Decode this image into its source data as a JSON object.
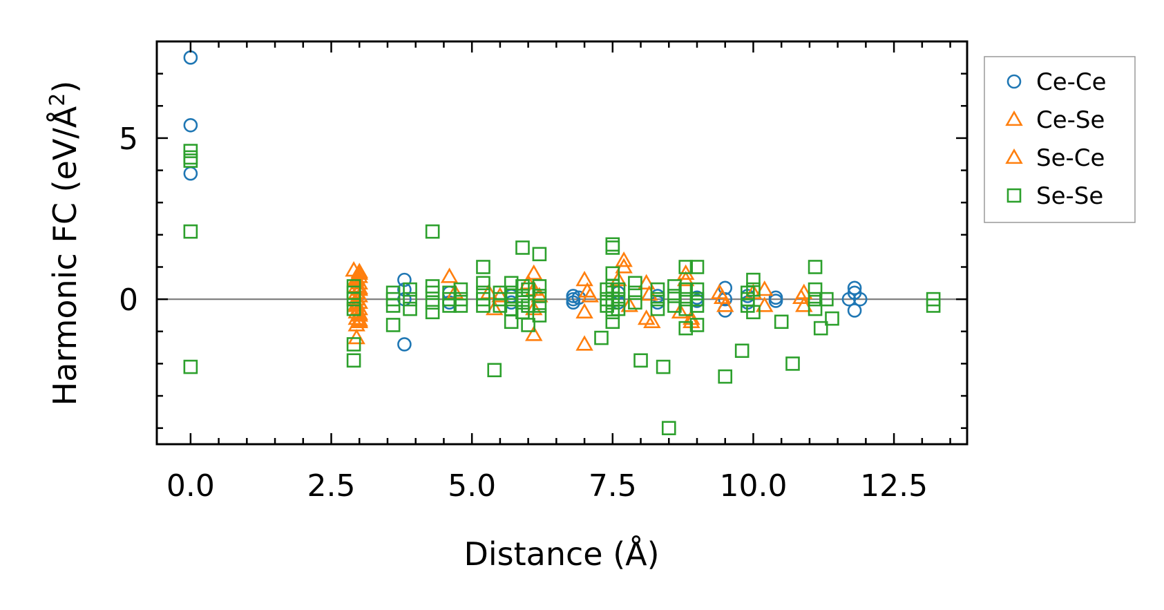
{
  "chart_data": {
    "type": "scatter",
    "title": "",
    "xlabel": "Distance (Å)",
    "ylabel": "Harmonic FC (eV/Å²)",
    "ylabel_base": "Harmonic FC (eV/Å",
    "ylabel_sup": "2",
    "ylabel_close": ")",
    "xlim": [
      -0.6,
      13.8
    ],
    "ylim": [
      -4.5,
      8.0
    ],
    "xticks": [
      0.0,
      2.5,
      5.0,
      7.5,
      10.0,
      12.5
    ],
    "xtick_labels": [
      "0.0",
      "2.5",
      "5.0",
      "7.5",
      "10.0",
      "12.5"
    ],
    "yticks": [
      0,
      5
    ],
    "ytick_labels": [
      "0",
      "5"
    ],
    "reference_line": 0,
    "legend_position": "outside-top-right",
    "series": [
      {
        "name": "Ce-Ce",
        "marker": "circle",
        "color": "#1f77b4",
        "points": [
          [
            0.0,
            7.5
          ],
          [
            0.0,
            5.4
          ],
          [
            0.0,
            3.9
          ],
          [
            3.8,
            0.6
          ],
          [
            3.8,
            0.3
          ],
          [
            3.8,
            0.0
          ],
          [
            3.8,
            -1.4
          ],
          [
            4.6,
            0.2
          ],
          [
            4.6,
            -0.1
          ],
          [
            5.7,
            0.1
          ],
          [
            5.7,
            -0.1
          ],
          [
            6.8,
            0.1
          ],
          [
            6.8,
            0.0
          ],
          [
            6.8,
            -0.1
          ],
          [
            6.9,
            0.05
          ],
          [
            7.6,
            0.2
          ],
          [
            7.6,
            -0.1
          ],
          [
            8.3,
            0.1
          ],
          [
            8.3,
            -0.1
          ],
          [
            9.0,
            0.05
          ],
          [
            9.0,
            -0.05
          ],
          [
            9.5,
            0.35
          ],
          [
            9.5,
            -0.35
          ],
          [
            9.5,
            0.0
          ],
          [
            9.9,
            0.1
          ],
          [
            9.9,
            -0.1
          ],
          [
            10.4,
            0.05
          ],
          [
            10.4,
            -0.05
          ],
          [
            11.8,
            0.35
          ],
          [
            11.8,
            0.2
          ],
          [
            11.8,
            -0.35
          ],
          [
            11.9,
            0.0
          ],
          [
            11.7,
            0.0
          ]
        ]
      },
      {
        "name": "Ce-Se",
        "marker": "triangle",
        "color": "#ff7f0e",
        "points": [
          [
            2.9,
            0.9
          ],
          [
            3.0,
            0.8
          ],
          [
            3.0,
            0.7
          ],
          [
            2.95,
            0.6
          ],
          [
            3.0,
            0.5
          ],
          [
            2.95,
            0.4
          ],
          [
            3.0,
            0.3
          ],
          [
            2.95,
            0.2
          ],
          [
            3.0,
            0.1
          ],
          [
            2.95,
            0.0
          ],
          [
            3.0,
            -0.1
          ],
          [
            2.95,
            -0.2
          ],
          [
            3.0,
            -0.3
          ],
          [
            2.95,
            -0.4
          ],
          [
            3.0,
            -0.5
          ],
          [
            2.95,
            -0.6
          ],
          [
            3.0,
            -0.7
          ],
          [
            2.95,
            -0.8
          ],
          [
            2.95,
            -1.2
          ],
          [
            4.6,
            0.7
          ],
          [
            4.7,
            0.2
          ],
          [
            5.3,
            0.2
          ],
          [
            5.4,
            -0.3
          ],
          [
            5.5,
            0.1
          ],
          [
            6.0,
            0.5
          ],
          [
            6.1,
            0.8
          ],
          [
            6.1,
            0.3
          ],
          [
            6.1,
            -0.3
          ],
          [
            6.1,
            -1.1
          ],
          [
            6.2,
            0.1
          ],
          [
            7.0,
            0.6
          ],
          [
            7.0,
            -0.4
          ],
          [
            7.0,
            -1.4
          ],
          [
            7.1,
            0.1
          ],
          [
            7.6,
            0.6
          ],
          [
            7.7,
            1.2
          ],
          [
            7.7,
            1.0
          ],
          [
            7.8,
            -0.2
          ],
          [
            8.1,
            0.5
          ],
          [
            8.1,
            -0.6
          ],
          [
            8.2,
            -0.7
          ],
          [
            8.7,
            -0.4
          ],
          [
            8.8,
            0.8
          ],
          [
            8.8,
            0.6
          ],
          [
            8.9,
            -0.6
          ],
          [
            8.9,
            -0.7
          ],
          [
            9.4,
            0.2
          ],
          [
            9.5,
            -0.2
          ],
          [
            10.0,
            0.2
          ],
          [
            10.2,
            0.3
          ],
          [
            10.2,
            -0.2
          ],
          [
            10.9,
            0.2
          ],
          [
            10.9,
            -0.2
          ]
        ]
      },
      {
        "name": "Se-Ce",
        "marker": "triangle",
        "color": "#ff7f0e",
        "points": [
          [
            3.0,
            0.85
          ],
          [
            2.95,
            0.65
          ],
          [
            3.0,
            0.35
          ],
          [
            2.95,
            -0.15
          ],
          [
            3.0,
            -0.45
          ],
          [
            3.0,
            -0.65
          ],
          [
            7.05,
            0.25
          ],
          [
            8.15,
            0.15
          ],
          [
            9.45,
            0.05
          ],
          [
            10.85,
            0.05
          ]
        ]
      },
      {
        "name": "Se-Se",
        "marker": "square",
        "color": "#2ca02c",
        "points": [
          [
            0.0,
            4.6
          ],
          [
            0.0,
            4.4
          ],
          [
            0.0,
            4.3
          ],
          [
            0.0,
            2.1
          ],
          [
            0.0,
            -2.1
          ],
          [
            2.9,
            0.4
          ],
          [
            2.9,
            0.2
          ],
          [
            2.9,
            0.0
          ],
          [
            2.9,
            -0.3
          ],
          [
            2.9,
            -1.4
          ],
          [
            2.9,
            -1.9
          ],
          [
            3.6,
            0.2
          ],
          [
            3.6,
            0.0
          ],
          [
            3.6,
            -0.2
          ],
          [
            3.6,
            -0.8
          ],
          [
            3.9,
            0.3
          ],
          [
            3.9,
            0.0
          ],
          [
            3.9,
            -0.3
          ],
          [
            4.3,
            2.1
          ],
          [
            4.3,
            0.4
          ],
          [
            4.3,
            0.2
          ],
          [
            4.3,
            -0.1
          ],
          [
            4.3,
            -0.4
          ],
          [
            4.6,
            0.2
          ],
          [
            4.6,
            0.0
          ],
          [
            4.6,
            -0.2
          ],
          [
            4.8,
            0.3
          ],
          [
            4.8,
            0.0
          ],
          [
            4.8,
            -0.2
          ],
          [
            5.2,
            1.0
          ],
          [
            5.2,
            0.5
          ],
          [
            5.2,
            0.2
          ],
          [
            5.2,
            0.0
          ],
          [
            5.2,
            -0.2
          ],
          [
            5.4,
            -2.2
          ],
          [
            5.5,
            0.2
          ],
          [
            5.5,
            0.0
          ],
          [
            5.5,
            -0.2
          ],
          [
            5.7,
            0.5
          ],
          [
            5.7,
            0.2
          ],
          [
            5.7,
            0.0
          ],
          [
            5.7,
            -0.3
          ],
          [
            5.7,
            -0.7
          ],
          [
            5.9,
            1.6
          ],
          [
            5.9,
            0.4
          ],
          [
            5.9,
            0.1
          ],
          [
            5.9,
            -0.1
          ],
          [
            5.9,
            -0.4
          ],
          [
            6.0,
            0.3
          ],
          [
            6.0,
            -0.2
          ],
          [
            6.0,
            -0.8
          ],
          [
            6.2,
            1.4
          ],
          [
            6.2,
            0.4
          ],
          [
            6.2,
            0.1
          ],
          [
            6.2,
            -0.2
          ],
          [
            6.2,
            -0.5
          ],
          [
            7.4,
            0.3
          ],
          [
            7.4,
            0.0
          ],
          [
            7.4,
            -0.2
          ],
          [
            7.5,
            1.7
          ],
          [
            7.5,
            1.6
          ],
          [
            7.5,
            0.8
          ],
          [
            7.5,
            0.4
          ],
          [
            7.5,
            0.2
          ],
          [
            7.5,
            -0.1
          ],
          [
            7.5,
            -0.4
          ],
          [
            7.5,
            -0.7
          ],
          [
            7.3,
            -1.2
          ],
          [
            7.6,
            0.3
          ],
          [
            7.6,
            0.0
          ],
          [
            7.6,
            -0.3
          ],
          [
            7.9,
            0.5
          ],
          [
            7.9,
            0.2
          ],
          [
            7.9,
            -0.1
          ],
          [
            8.0,
            -1.9
          ],
          [
            8.3,
            0.3
          ],
          [
            8.3,
            0.0
          ],
          [
            8.3,
            -0.3
          ],
          [
            8.4,
            -2.1
          ],
          [
            8.5,
            -4.0
          ],
          [
            8.6,
            0.4
          ],
          [
            8.6,
            0.1
          ],
          [
            8.6,
            -0.2
          ],
          [
            8.8,
            1.0
          ],
          [
            8.8,
            0.3
          ],
          [
            8.8,
            0.0
          ],
          [
            8.8,
            -0.3
          ],
          [
            8.8,
            -0.9
          ],
          [
            9.0,
            1.0
          ],
          [
            9.0,
            0.3
          ],
          [
            9.0,
            0.0
          ],
          [
            9.0,
            -0.2
          ],
          [
            9.0,
            -0.8
          ],
          [
            9.5,
            -2.4
          ],
          [
            9.8,
            -1.6
          ],
          [
            9.9,
            0.2
          ],
          [
            9.9,
            0.0
          ],
          [
            9.9,
            -0.2
          ],
          [
            10.0,
            0.6
          ],
          [
            10.0,
            0.3
          ],
          [
            10.0,
            -0.4
          ],
          [
            10.5,
            -0.7
          ],
          [
            10.7,
            -2.0
          ],
          [
            11.1,
            1.0
          ],
          [
            11.1,
            0.3
          ],
          [
            11.1,
            0.0
          ],
          [
            11.1,
            -0.3
          ],
          [
            11.2,
            -0.9
          ],
          [
            11.4,
            -0.6
          ],
          [
            11.3,
            0.0
          ],
          [
            13.2,
            0.0
          ],
          [
            13.2,
            -0.2
          ]
        ]
      }
    ]
  }
}
